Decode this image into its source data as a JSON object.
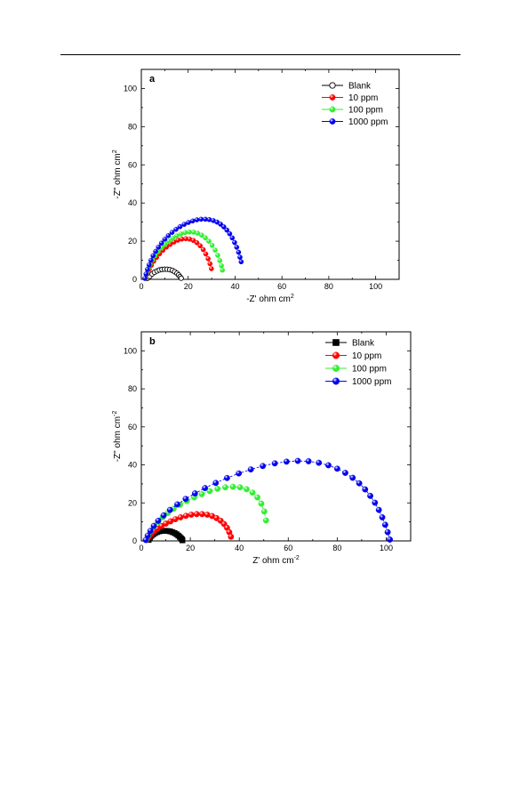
{
  "chart_data": [
    {
      "type": "scatter",
      "panel_label": "a",
      "xlabel": "-Z' ohm cm",
      "xlabel_sup": "2",
      "ylabel": "-Z\" ohm cm",
      "ylabel_sup": "2",
      "xlim": [
        0,
        110
      ],
      "ylim": [
        0,
        110
      ],
      "xticks": [
        0,
        20,
        40,
        60,
        80,
        100
      ],
      "yticks": [
        0,
        20,
        40,
        60,
        80,
        100
      ],
      "legend_position": "top-right",
      "series": [
        {
          "name": "Blank",
          "color": "#000000",
          "marker": "open-circle",
          "line": "solid",
          "x": [
            2.5,
            3.6,
            4.6,
            5.6,
            6.7,
            7.7,
            8.8,
            9.9,
            11.0,
            12.1,
            13.2,
            14.2,
            15.2,
            15.9,
            16.5,
            17.0
          ],
          "y": [
            0.5,
            1.6,
            2.8,
            3.7,
            4.4,
            4.9,
            5.2,
            5.3,
            5.3,
            5.1,
            4.7,
            4.0,
            3.2,
            2.3,
            1.4,
            0.6
          ]
        },
        {
          "name": "10 ppm",
          "color": "#ff0000",
          "marker": "sphere",
          "line": "dashed",
          "x": [
            2.0,
            2.6,
            3.4,
            4.3,
            5.3,
            6.5,
            7.8,
            9.2,
            10.7,
            12.3,
            13.9,
            15.6,
            17.3,
            19.0,
            20.6,
            22.2,
            23.7,
            25.1,
            26.4,
            27.5,
            28.5,
            29.3,
            29.9
          ],
          "y": [
            0.5,
            2.9,
            5.2,
            7.4,
            9.5,
            11.5,
            13.4,
            15.2,
            16.9,
            18.3,
            19.5,
            20.5,
            21.1,
            21.3,
            21.1,
            20.4,
            19.2,
            17.6,
            15.6,
            13.3,
            10.8,
            8.2,
            5.6
          ]
        },
        {
          "name": "100 ppm",
          "color": "#33ee33",
          "marker": "sphere",
          "line": "dashed",
          "x": [
            1.8,
            2.3,
            3.0,
            3.8,
            4.8,
            5.9,
            7.2,
            8.6,
            10.1,
            11.7,
            13.4,
            15.1,
            16.9,
            18.7,
            20.5,
            22.3,
            24.0,
            25.7,
            27.3,
            28.8,
            30.2,
            31.5,
            32.6,
            33.5,
            34.2,
            34.6
          ],
          "y": [
            0.5,
            3.0,
            5.5,
            7.9,
            10.2,
            12.4,
            14.5,
            16.5,
            18.3,
            20.0,
            21.5,
            22.8,
            23.8,
            24.5,
            24.8,
            24.7,
            24.2,
            23.2,
            21.8,
            20.0,
            17.8,
            15.3,
            12.6,
            9.8,
            7.1,
            4.8
          ]
        },
        {
          "name": "1000 ppm",
          "color": "#0000ee",
          "marker": "sphere",
          "line": "dashed",
          "x": [
            1.5,
            2.0,
            2.6,
            3.3,
            4.1,
            5.0,
            6.1,
            7.3,
            8.6,
            10.0,
            11.5,
            13.1,
            14.8,
            16.5,
            18.3,
            20.1,
            21.9,
            23.7,
            25.5,
            27.3,
            29.0,
            30.7,
            32.3,
            33.8,
            35.2,
            36.5,
            37.7,
            38.8,
            39.8,
            40.7,
            41.5,
            42.1,
            42.6
          ],
          "y": [
            0.5,
            2.8,
            5.2,
            7.6,
            10.0,
            12.4,
            14.7,
            16.9,
            19.0,
            21.0,
            22.9,
            24.6,
            26.2,
            27.6,
            28.8,
            29.8,
            30.6,
            31.2,
            31.5,
            31.5,
            31.3,
            30.8,
            30.0,
            28.9,
            27.5,
            25.8,
            23.9,
            21.7,
            19.3,
            16.8,
            14.2,
            11.6,
            9.2
          ]
        }
      ],
      "annotations": []
    },
    {
      "type": "scatter",
      "panel_label": "b",
      "xlabel": "Z' ohm cm",
      "xlabel_sup": "-2",
      "ylabel": "-Z\" ohm cm",
      "ylabel_sup": "-2",
      "xlim": [
        0,
        110
      ],
      "ylim": [
        0,
        110
      ],
      "xticks": [
        0,
        20,
        40,
        60,
        80,
        100
      ],
      "yticks": [
        0,
        20,
        40,
        60,
        80,
        100
      ],
      "legend_position": "top-right",
      "series": [
        {
          "name": "Blank",
          "color": "#000000",
          "marker": "square",
          "line": "solid",
          "x": [
            3.0,
            3.5,
            4.1,
            4.8,
            5.6,
            6.4,
            7.3,
            8.2,
            9.1,
            10.0,
            10.9,
            11.8,
            12.7,
            13.6,
            14.4,
            15.1,
            15.7,
            16.2,
            16.6,
            16.8
          ],
          "y": [
            0.5,
            1.6,
            2.6,
            3.4,
            4.1,
            4.6,
            5.0,
            5.2,
            5.3,
            5.3,
            5.2,
            5.0,
            4.6,
            4.1,
            3.5,
            2.8,
            2.1,
            1.4,
            0.8,
            0.3
          ]
        },
        {
          "name": "10 ppm",
          "color": "#ff0000",
          "marker": "sphere",
          "line": "dashed",
          "x": [
            2.2,
            3.0,
            4.0,
            5.2,
            6.6,
            8.2,
            10.0,
            11.9,
            13.9,
            16.0,
            18.2,
            20.4,
            22.6,
            24.8,
            26.9,
            28.9,
            30.7,
            32.4,
            33.8,
            35.0,
            35.9,
            36.6
          ],
          "y": [
            0.5,
            2.0,
            3.5,
            5.0,
            6.4,
            7.8,
            9.1,
            10.3,
            11.4,
            12.4,
            13.2,
            13.8,
            14.1,
            14.1,
            13.8,
            13.1,
            12.0,
            10.6,
            8.9,
            6.9,
            4.6,
            2.2
          ]
        },
        {
          "name": "100 ppm",
          "color": "#33ee33",
          "marker": "sphere",
          "line": "dashed",
          "x": [
            2.0,
            2.8,
            3.9,
            5.2,
            6.8,
            8.7,
            10.8,
            13.2,
            15.8,
            18.6,
            21.6,
            24.7,
            27.9,
            31.1,
            34.3,
            37.4,
            40.3,
            43.0,
            45.4,
            47.4,
            49.0,
            50.2,
            50.9
          ],
          "y": [
            0.5,
            2.8,
            5.2,
            7.6,
            10.0,
            12.4,
            14.7,
            16.9,
            19.0,
            21.0,
            22.9,
            24.6,
            26.2,
            27.4,
            28.2,
            28.5,
            28.2,
            27.2,
            25.4,
            22.9,
            19.6,
            15.5,
            10.8
          ]
        },
        {
          "name": "1000 ppm",
          "color": "#0000ee",
          "marker": "sphere",
          "line": "dashed",
          "x": [
            1.8,
            2.6,
            3.7,
            5.1,
            6.9,
            9.1,
            11.7,
            14.7,
            18.1,
            21.9,
            26.0,
            30.4,
            35.0,
            39.8,
            44.7,
            49.6,
            54.5,
            59.3,
            63.9,
            68.3,
            72.5,
            76.4,
            80.0,
            83.3,
            86.3,
            89.0,
            91.4,
            93.5,
            95.4,
            97.0,
            98.4,
            99.6,
            100.6,
            101.5
          ],
          "y": [
            0.5,
            2.8,
            5.3,
            7.9,
            10.6,
            13.4,
            16.3,
            19.2,
            22.1,
            25.0,
            27.8,
            30.5,
            33.1,
            35.5,
            37.6,
            39.4,
            40.8,
            41.7,
            42.1,
            41.9,
            41.1,
            39.8,
            38.0,
            35.8,
            33.2,
            30.3,
            27.1,
            23.7,
            20.1,
            16.3,
            12.4,
            8.5,
            4.6,
            0.7
          ]
        }
      ],
      "annotations": []
    }
  ]
}
